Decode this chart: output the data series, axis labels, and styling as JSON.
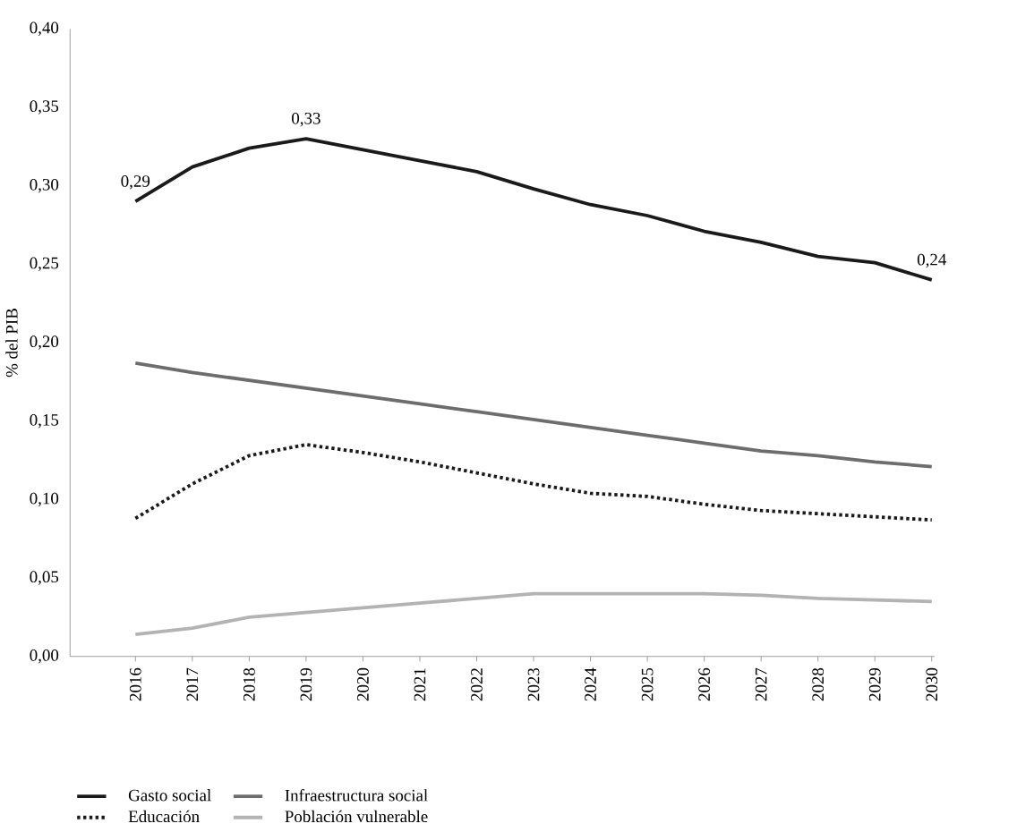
{
  "chart_data": {
    "type": "line",
    "ylabel": "% del PIB",
    "categories": [
      "2016",
      "2017",
      "2018",
      "2019",
      "2020",
      "2021",
      "2022",
      "2023",
      "2024",
      "2025",
      "2026",
      "2027",
      "2028",
      "2029",
      "2030"
    ],
    "ylim": [
      0,
      0.4
    ],
    "yticks": [
      {
        "value": 0,
        "label": "0,00"
      },
      {
        "value": 0.05,
        "label": "0,05"
      },
      {
        "value": 0.1,
        "label": "0,10"
      },
      {
        "value": 0.15,
        "label": "0,15"
      },
      {
        "value": 0.2,
        "label": "0,20"
      },
      {
        "value": 0.25,
        "label": "0,25"
      },
      {
        "value": 0.3,
        "label": "0,30"
      },
      {
        "value": 0.35,
        "label": "0,35"
      },
      {
        "value": 0.4,
        "label": "0,40"
      }
    ],
    "series": [
      {
        "name": "Gasto social",
        "color": "#1a1a1a",
        "line_style": "solid",
        "values": [
          0.29,
          0.312,
          0.324,
          0.33,
          0.323,
          0.316,
          0.309,
          0.298,
          0.288,
          0.281,
          0.271,
          0.264,
          0.255,
          0.251,
          0.24
        ],
        "value_labels": [
          "0,29",
          null,
          null,
          "0,33",
          null,
          null,
          null,
          null,
          null,
          null,
          null,
          null,
          null,
          null,
          "0,24"
        ]
      },
      {
        "name": "Infraestructura social",
        "color": "#6d6d6d",
        "line_style": "solid",
        "values": [
          0.187,
          0.181,
          0.176,
          0.171,
          0.166,
          0.161,
          0.156,
          0.151,
          0.146,
          0.141,
          0.136,
          0.131,
          0.128,
          0.124,
          0.121
        ]
      },
      {
        "name": "Educación",
        "color": "#1a1a1a",
        "line_style": "dotted",
        "values": [
          0.088,
          0.11,
          0.128,
          0.135,
          0.13,
          0.124,
          0.117,
          0.11,
          0.104,
          0.102,
          0.097,
          0.093,
          0.091,
          0.089,
          0.087
        ]
      },
      {
        "name": "Población vulnerable",
        "color": "#b3b3b3",
        "line_style": "solid",
        "values": [
          0.014,
          0.018,
          0.025,
          0.028,
          0.031,
          0.034,
          0.037,
          0.04,
          0.04,
          0.04,
          0.04,
          0.039,
          0.037,
          0.036,
          0.035
        ]
      }
    ],
    "legend": "bottom",
    "marker": "none"
  }
}
